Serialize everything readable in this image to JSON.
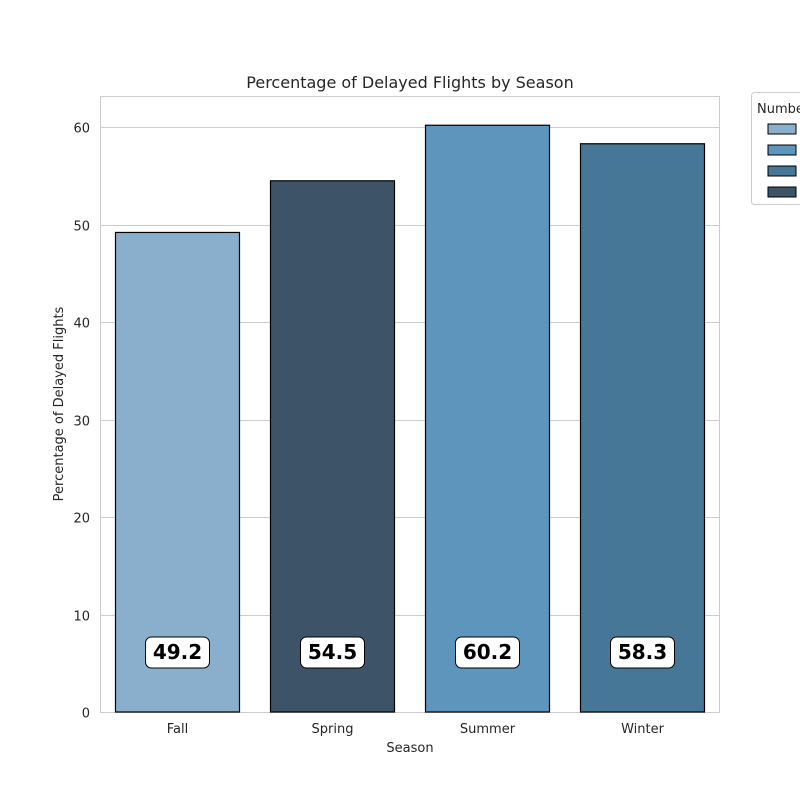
{
  "chart_data": {
    "type": "bar",
    "title": "Percentage of Delayed Flights by Season",
    "xlabel": "Season",
    "ylabel": "Percentage of Delayed Flights",
    "categories": [
      "Fall",
      "Spring",
      "Summer",
      "Winter"
    ],
    "values": [
      49.2,
      54.5,
      60.2,
      58.3
    ],
    "data_labels": [
      "49.2",
      "54.5",
      "60.2",
      "58.3"
    ],
    "bar_colors": [
      "#8aafcc",
      "#3d5368",
      "#5e95bd",
      "#467797"
    ],
    "ylim": [
      0,
      63.2
    ],
    "yticks": [
      0,
      10,
      20,
      30,
      40,
      50,
      60
    ],
    "grid": true,
    "legend": {
      "title": "Numbe",
      "placement": "outside-top-right",
      "swatch_colors": [
        "#8aafcc",
        "#5e95bd",
        "#467797",
        "#3d5368"
      ]
    }
  }
}
